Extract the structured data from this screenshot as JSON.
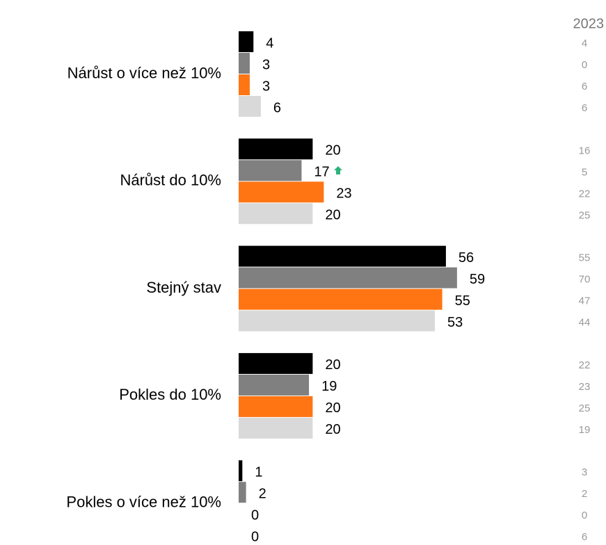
{
  "chart_data": {
    "type": "bar",
    "orientation": "horizontal",
    "categories": [
      "Nárůst o více než 10%",
      "Nárůst do 10%",
      "Stejný stav",
      "Pokles do 10%",
      "Pokles o více než 10%"
    ],
    "series": [
      {
        "color": "#000000",
        "values": [
          4,
          20,
          56,
          20,
          1
        ]
      },
      {
        "color": "#808080",
        "values": [
          3,
          17,
          59,
          19,
          2
        ]
      },
      {
        "color": "#ff7514",
        "values": [
          3,
          23,
          55,
          20,
          0
        ]
      },
      {
        "color": "#d9d9d9",
        "values": [
          6,
          20,
          53,
          20,
          0
        ]
      }
    ],
    "comparison": {
      "title": "2023",
      "series": [
        {
          "values": [
            4,
            16,
            55,
            22,
            3
          ]
        },
        {
          "values": [
            0,
            5,
            70,
            23,
            2
          ]
        },
        {
          "values": [
            6,
            22,
            47,
            25,
            0
          ]
        },
        {
          "values": [
            6,
            25,
            44,
            19,
            6
          ]
        }
      ]
    }
  }
}
